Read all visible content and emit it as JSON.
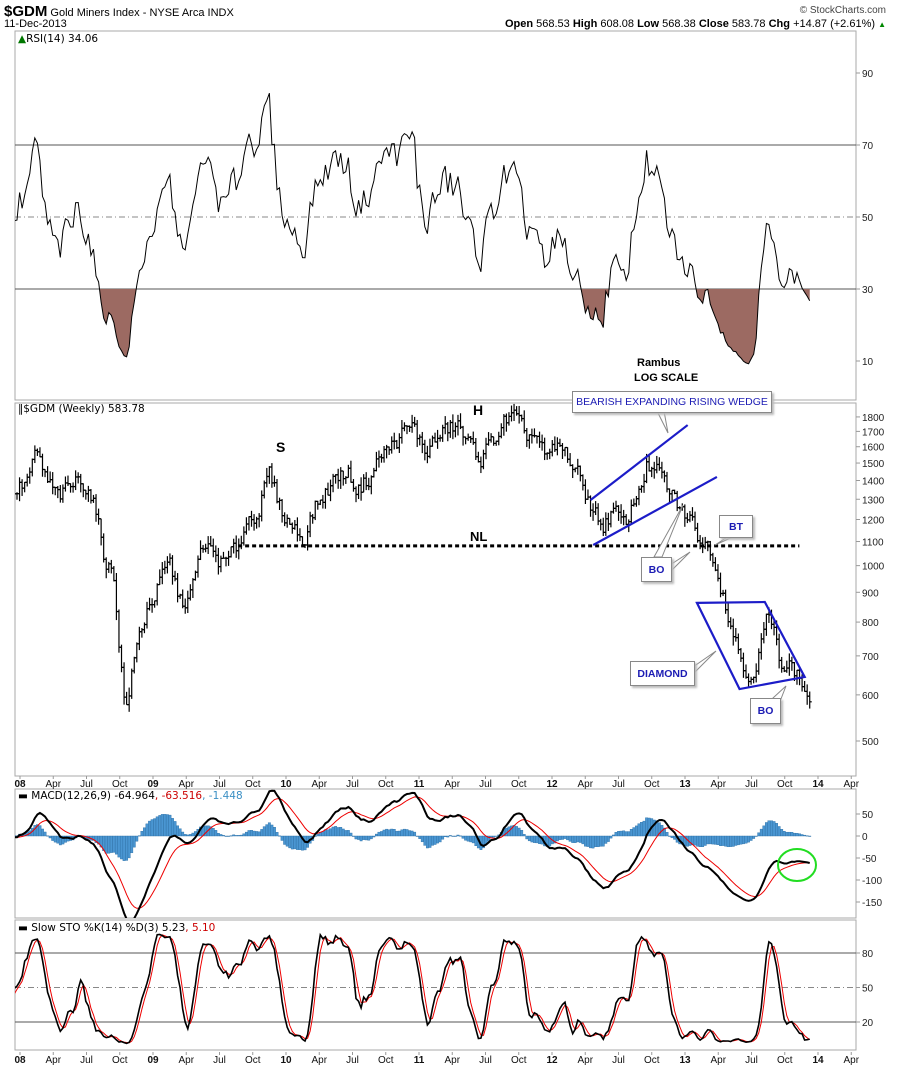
{
  "header": {
    "symbol": "$GDM",
    "name": "Gold Miners Index - NYSE Arca INDX",
    "date": "11-Dec-2013",
    "watermark": "© StockCharts.com",
    "open_label": "Open",
    "open": "568.53",
    "high_label": "High",
    "high": "608.08",
    "low_label": "Low",
    "low": "568.38",
    "close_label": "Close",
    "close": "583.78",
    "chg_label": "Chg",
    "chg": "+14.87 (+2.61%)",
    "chg_icon": "up-triangle-icon"
  },
  "panels": {
    "rsi": {
      "label": "RSI(14) 34.06"
    },
    "price": {
      "label": "$GDM (Weekly) 583.78"
    },
    "macd": {
      "label": "MACD(12,26,9) -64.964",
      "signal": ", -63.516",
      "hist": ", -1.448"
    },
    "sto": {
      "label": "Slow STO %K(14) %D(3) 5.23",
      "d": ", 5.10"
    }
  },
  "annotations": {
    "author": "Rambus",
    "scale": "LOG SCALE",
    "s": "S",
    "h": "H",
    "nl": "NL",
    "wedge": "BEARISH EXPANDING RISING WEDGE",
    "bt": "BT",
    "bo1": "BO",
    "diamond": "DIAMOND",
    "bo2": "BO",
    "colors": {
      "pattern": "#1c1cc8",
      "highlight": "#22dd22",
      "rsi_fill": "#9c6a62"
    }
  },
  "chart_data": {
    "type": "ohlc",
    "title": "$GDM Gold Miners Index (Weekly)",
    "scale": "log",
    "monthly_close_start": "Dec 2007",
    "monthly_close": [
      1350,
      1380,
      1540,
      1380,
      1300,
      1350,
      1420,
      1330,
      1060,
      950,
      560,
      720,
      850,
      920,
      1000,
      860,
      900,
      1080,
      1040,
      1000,
      1060,
      1200,
      1260,
      1420,
      1250,
      1180,
      1110,
      1250,
      1330,
      1420,
      1450,
      1360,
      1420,
      1540,
      1600,
      1680,
      1720,
      1570,
      1640,
      1700,
      1740,
      1600,
      1540,
      1600,
      1760,
      1790,
      1650,
      1690,
      1500,
      1590,
      1540,
      1400,
      1280,
      1170,
      1240,
      1160,
      1300,
      1490,
      1440,
      1340,
      1250,
      1190,
      1110,
      1060,
      900,
      760,
      650,
      690,
      820,
      700,
      680,
      630,
      584
    ],
    "last_bar": {
      "open": 568.53,
      "high": 608.08,
      "low": 568.38,
      "close": 583.78
    },
    "price_ticks": [
      500,
      600,
      700,
      800,
      900,
      1000,
      1100,
      1200,
      1300,
      1400,
      1500,
      1600,
      1700,
      1800
    ],
    "rsi_ticks": [
      10,
      30,
      50,
      70,
      90
    ],
    "macd_ticks": [
      50,
      0,
      -50,
      -100,
      -150
    ],
    "sto_ticks": [
      20,
      50,
      80
    ],
    "x_ticks": [
      {
        "label": "08",
        "t": 2008,
        "major": true
      },
      {
        "label": "Apr",
        "t": 2008.25
      },
      {
        "label": "Jul",
        "t": 2008.5
      },
      {
        "label": "Oct",
        "t": 2008.75
      },
      {
        "label": "09",
        "t": 2009,
        "major": true
      },
      {
        "label": "Apr",
        "t": 2009.25
      },
      {
        "label": "Jul",
        "t": 2009.5
      },
      {
        "label": "Oct",
        "t": 2009.75
      },
      {
        "label": "10",
        "t": 2010,
        "major": true
      },
      {
        "label": "Apr",
        "t": 2010.25
      },
      {
        "label": "Jul",
        "t": 2010.5
      },
      {
        "label": "Oct",
        "t": 2010.75
      },
      {
        "label": "11",
        "t": 2011,
        "major": true
      },
      {
        "label": "Apr",
        "t": 2011.25
      },
      {
        "label": "Jul",
        "t": 2011.5
      },
      {
        "label": "Oct",
        "t": 2011.75
      },
      {
        "label": "12",
        "t": 2012,
        "major": true
      },
      {
        "label": "Apr",
        "t": 2012.25
      },
      {
        "label": "Jul",
        "t": 2012.5
      },
      {
        "label": "Oct",
        "t": 2012.75
      },
      {
        "label": "13",
        "t": 2013,
        "major": true
      },
      {
        "label": "Apr",
        "t": 2013.25
      },
      {
        "label": "Jul",
        "t": 2013.5
      },
      {
        "label": "Oct",
        "t": 2013.75
      },
      {
        "label": "14",
        "t": 2014,
        "major": true
      },
      {
        "label": "Apr",
        "t": 2014.25
      }
    ],
    "neckline": {
      "price": 1081,
      "from": 2009.64,
      "to": 2013.86
    },
    "wedge_upper": [
      [
        2012.29,
        1296
      ],
      [
        2013.02,
        1743
      ]
    ],
    "wedge_lower": [
      [
        2012.31,
        1085
      ],
      [
        2013.24,
        1420
      ]
    ],
    "diamond": [
      [
        2013.09,
        863
      ],
      [
        2013.6,
        866
      ],
      [
        2013.9,
        644
      ],
      [
        2013.41,
        614
      ]
    ],
    "indicators": {
      "rsi": {
        "period": 14,
        "levels": [
          30,
          50,
          70
        ]
      },
      "macd": {
        "fast": 12,
        "slow": 26,
        "signal": 9
      },
      "sto": {
        "k": 14,
        "d": 3,
        "levels": [
          20,
          50,
          80
        ]
      }
    }
  }
}
